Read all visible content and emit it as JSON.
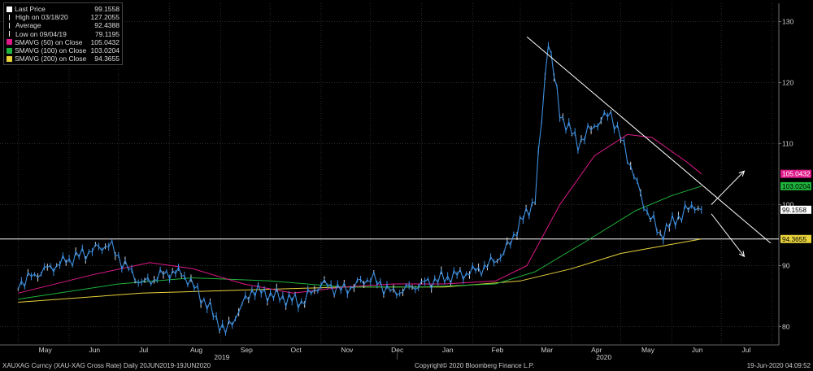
{
  "chart_data": {
    "type": "line",
    "legend_position": "top-left",
    "grid": true,
    "ylim": [
      77,
      133
    ],
    "y_ticks": [
      80,
      90,
      100,
      110,
      120,
      130
    ],
    "x_month_labels": [
      "May",
      "Jun",
      "Jul",
      "Aug",
      "Sep",
      "Oct",
      "Nov",
      "Dec",
      "Jan",
      "Feb",
      "Mar",
      "Apr",
      "May",
      "Jun",
      "Jul"
    ],
    "x_year_labels": [
      "2019",
      "2020"
    ],
    "legend": [
      {
        "name": "Last Price",
        "value": "99.1558",
        "color": "#ffffff"
      },
      {
        "name": "High on 03/18/20",
        "value": "127.2055",
        "color": "#ffffff"
      },
      {
        "name": "Average",
        "value": "92.4388",
        "color": "#ffffff"
      },
      {
        "name": "Low on 09/04/19",
        "value": "79.1195",
        "color": "#ffffff"
      },
      {
        "name": "SMAVG (50)  on Close",
        "value": "105.0432",
        "color": "#e0198a"
      },
      {
        "name": "SMAVG (100)  on Close",
        "value": "103.0204",
        "color": "#1fb43c"
      },
      {
        "name": "SMAVG (200)  on Close",
        "value": "94.3655",
        "color": "#e8d23c"
      }
    ],
    "price_axis_labels": [
      {
        "text": "105.0432",
        "value": 105.0432,
        "bg": "#e0198a",
        "fg": "#ffffff"
      },
      {
        "text": "103.0204",
        "value": 103.0204,
        "bg": "#1fb43c",
        "fg": "#000000"
      },
      {
        "text": "99.1558",
        "value": 99.1558,
        "bg": "#ffffff",
        "fg": "#000000"
      },
      {
        "text": "94.3655",
        "value": 94.3655,
        "bg": "#e8d23c",
        "fg": "#000000"
      }
    ],
    "horizontal_line": 94.3655,
    "series": [
      {
        "name": "Last Price",
        "color": "#3d8fe0",
        "dates": [
          "2019-05-01",
          "2019-05-15",
          "2019-06-01",
          "2019-06-15",
          "2019-06-25",
          "2019-07-05",
          "2019-07-15",
          "2019-08-01",
          "2019-08-10",
          "2019-08-20",
          "2019-09-04",
          "2019-09-20",
          "2019-10-05",
          "2019-10-20",
          "2019-11-01",
          "2019-11-15",
          "2019-12-01",
          "2019-12-15",
          "2020-01-01",
          "2020-01-15",
          "2020-02-01",
          "2020-02-10",
          "2020-02-20",
          "2020-02-28",
          "2020-03-10",
          "2020-03-18",
          "2020-03-25",
          "2020-04-05",
          "2020-04-15",
          "2020-04-25",
          "2020-05-05",
          "2020-05-15",
          "2020-05-25",
          "2020-06-05",
          "2020-06-15",
          "2020-06-19"
        ],
        "values": [
          87,
          89,
          91,
          92.5,
          93.5,
          90,
          87,
          89,
          88.5,
          85,
          79.1195,
          86,
          85,
          84,
          87,
          86,
          88,
          85.5,
          87,
          88,
          89,
          90,
          92,
          96,
          101,
          127.2055,
          115,
          110,
          113,
          115,
          108,
          100,
          95,
          98,
          100,
          99.1558
        ]
      },
      {
        "name": "SMAVG (50)",
        "color": "#e0198a",
        "dates": [
          "2019-05-01",
          "2019-06-15",
          "2019-07-20",
          "2019-08-15",
          "2019-09-15",
          "2019-10-15",
          "2019-11-15",
          "2019-12-15",
          "2020-01-15",
          "2020-02-15",
          "2020-03-05",
          "2020-03-25",
          "2020-04-15",
          "2020-05-05",
          "2020-05-20",
          "2020-06-10",
          "2020-06-19"
        ],
        "values": [
          85.5,
          88.5,
          90.5,
          89.5,
          87,
          85.5,
          86.5,
          87,
          87,
          87.5,
          90,
          100,
          108,
          111.5,
          111,
          107,
          105.0432
        ]
      },
      {
        "name": "SMAVG (100)",
        "color": "#1fb43c",
        "dates": [
          "2019-05-01",
          "2019-07-01",
          "2019-08-15",
          "2019-10-01",
          "2019-11-15",
          "2020-01-01",
          "2020-02-15",
          "2020-03-10",
          "2020-04-10",
          "2020-05-10",
          "2020-06-01",
          "2020-06-19"
        ],
        "values": [
          84.5,
          87,
          88,
          87.5,
          86.5,
          86.5,
          87,
          89,
          94,
          99,
          101.5,
          103.0204
        ]
      },
      {
        "name": "SMAVG (200)",
        "color": "#e8d23c",
        "dates": [
          "2019-05-01",
          "2019-07-15",
          "2019-09-15",
          "2019-11-15",
          "2020-01-15",
          "2020-03-01",
          "2020-04-01",
          "2020-05-01",
          "2020-06-01",
          "2020-06-19"
        ],
        "values": [
          84,
          85.5,
          86,
          86.5,
          86.5,
          87.5,
          89.5,
          92,
          93.5,
          94.3655
        ]
      }
    ],
    "trendline_upper": {
      "dates": [
        "2020-03-05",
        "2020-07-31"
      ],
      "values": [
        127.5,
        93.7
      ]
    },
    "arrows": [
      {
        "from_date": "2020-06-25",
        "from_value": 100,
        "to_date": "2020-07-15",
        "to_value": 105.5
      },
      {
        "from_date": "2020-06-25",
        "from_value": 98.5,
        "to_date": "2020-07-15",
        "to_value": 91.5
      }
    ]
  },
  "footer": {
    "left": "XAUXAG Curncy (XAU-XAG Cross Rate)  Daily 20JUN2019-19JUN2020",
    "center": "Copyright© 2020 Bloomberg Finance L.P.",
    "right": "19-Jun-2020 04:09:52"
  }
}
